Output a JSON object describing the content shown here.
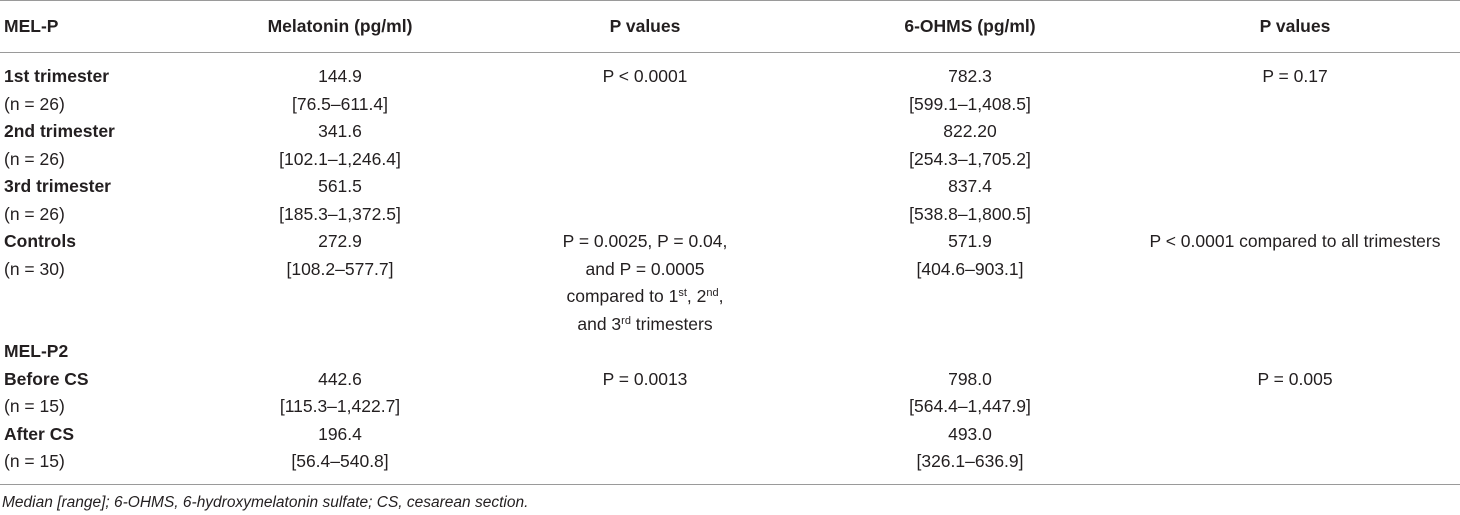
{
  "table": {
    "headers": [
      "MEL-P",
      "Melatonin (pg/ml)",
      "P values",
      "6-OHMS (pg/ml)",
      "P values"
    ],
    "rows": [
      [
        "1st trimester",
        "144.9",
        "P < 0.0001",
        "782.3",
        "P = 0.17"
      ],
      [
        "(n = 26)",
        "[76.5–611.4]",
        "",
        "[599.1–1,408.5]",
        ""
      ],
      [
        "2nd trimester",
        "341.6",
        "",
        "822.20",
        ""
      ],
      [
        "(n = 26)",
        "[102.1–1,246.4]",
        "",
        "[254.3–1,705.2]",
        ""
      ],
      [
        "3rd trimester",
        "561.5",
        "",
        "837.4",
        ""
      ],
      [
        "(n = 26)",
        "[185.3–1,372.5]",
        "",
        "[538.8–1,800.5]",
        ""
      ],
      [
        "Controls",
        "272.9",
        "P = 0.0025, P = 0.04,",
        "571.9",
        "P < 0.0001 compared to all trimesters"
      ],
      [
        "(n = 30)",
        "[108.2–577.7]",
        "and P = 0.0005",
        "[404.6–903.1]",
        ""
      ],
      [
        "",
        "",
        "compared to 1st, 2nd,",
        "",
        ""
      ],
      [
        "",
        "",
        "and 3rd trimesters",
        "",
        ""
      ],
      [
        "MEL-P2",
        "",
        "",
        "",
        ""
      ],
      [
        "Before CS",
        "442.6",
        "P = 0.0013",
        "798.0",
        "P = 0.005"
      ],
      [
        "(n = 15)",
        "[115.3–1,422.7]",
        "",
        "[564.4–1,447.9]",
        ""
      ],
      [
        "After CS",
        "196.4",
        "",
        "493.0",
        ""
      ],
      [
        "(n = 15)",
        "[56.4–540.8]",
        "",
        "[326.1–636.9]",
        ""
      ]
    ],
    "compare_line": {
      "prefix": "compared to 1",
      "sup1": "st",
      "mid1": ", 2",
      "sup2": "nd",
      "tail": ","
    },
    "trimester_line": {
      "prefix": "and 3",
      "sup": "rd",
      "tail": " trimesters"
    }
  },
  "footnote": "Median [range]; 6-OHMS, 6-hydroxymelatonin sulfate; CS, cesarean section."
}
